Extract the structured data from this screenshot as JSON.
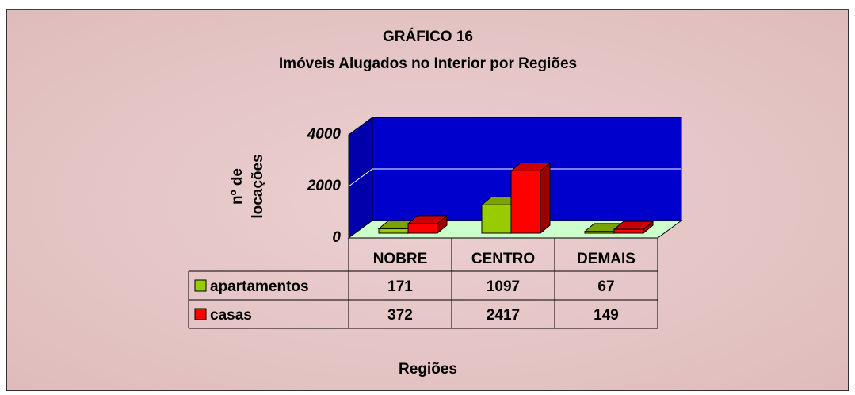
{
  "chart_data": {
    "type": "bar",
    "title": "GRÁFICO 16",
    "subtitle": "Imóveis Alugados no Interior por Regiões",
    "y_label": [
      "nº de",
      "locações"
    ],
    "x_label": "Regiões",
    "categories": [
      "NOBRE",
      "CENTRO",
      "DEMAIS"
    ],
    "series": [
      {
        "name": "apartamentos",
        "color": "#99cc00",
        "values": [
          171,
          1097,
          67
        ]
      },
      {
        "name": "casas",
        "color": "#ff0000",
        "values": [
          372,
          2417,
          149
        ]
      }
    ],
    "ylim": [
      0,
      4000
    ],
    "yticks": [
      0,
      2000,
      4000
    ],
    "grid": true,
    "data_table": true
  }
}
